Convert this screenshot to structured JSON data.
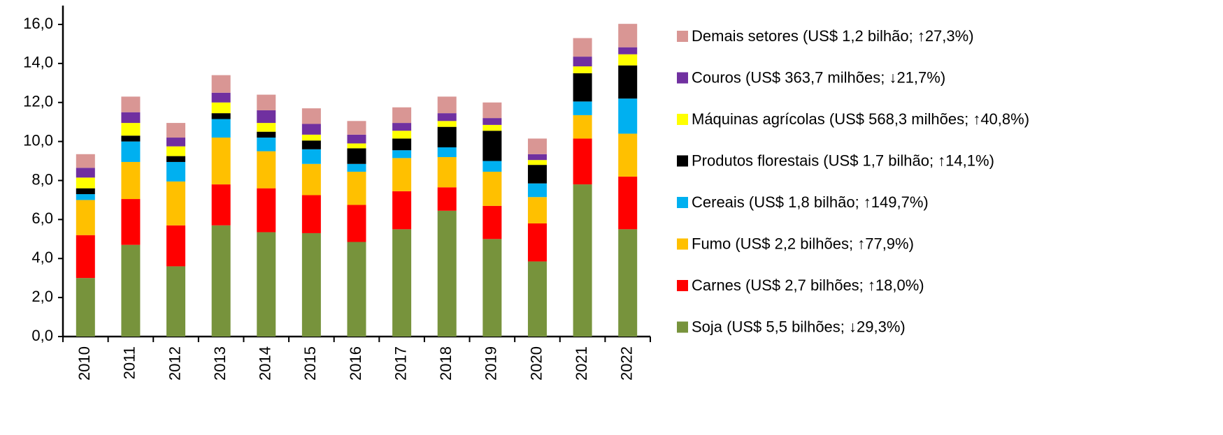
{
  "chart_data": {
    "type": "stacked_bar",
    "categories": [
      "2010",
      "2011",
      "2012",
      "2013",
      "2014",
      "2015",
      "2016",
      "2017",
      "2018",
      "2019",
      "2020",
      "2021",
      "2022"
    ],
    "series": [
      {
        "name": "Soja (US$ 5,5 bilhões; ↓29,3%)",
        "color": "#77933c",
        "values": [
          3.0,
          4.7,
          3.6,
          5.7,
          5.35,
          5.3,
          4.85,
          5.5,
          6.45,
          5.0,
          3.85,
          7.8,
          5.5
        ]
      },
      {
        "name": "Carnes (US$ 2,7 bilhões; ↑18,0%)",
        "color": "#ff0000",
        "values": [
          2.2,
          2.35,
          2.1,
          2.1,
          2.25,
          1.95,
          1.9,
          1.95,
          1.2,
          1.7,
          1.95,
          2.35,
          2.7
        ]
      },
      {
        "name": "Fumo (US$ 2,2 bilhões; ↑77,9%)",
        "color": "#ffc000",
        "values": [
          1.8,
          1.9,
          2.25,
          2.4,
          1.9,
          1.6,
          1.7,
          1.7,
          1.55,
          1.75,
          1.35,
          1.2,
          2.2
        ]
      },
      {
        "name": "Cereais (US$ 1,8 bilhão; ↑149,7%)",
        "color": "#00b0f0",
        "values": [
          0.3,
          1.05,
          1.0,
          0.95,
          0.7,
          0.75,
          0.4,
          0.4,
          0.5,
          0.55,
          0.7,
          0.7,
          1.8
        ]
      },
      {
        "name": "Produtos florestais (US$ 1,7 bilhão; ↑14,1%)",
        "color": "#000000",
        "values": [
          0.3,
          0.3,
          0.3,
          0.3,
          0.3,
          0.45,
          0.8,
          0.6,
          1.05,
          1.55,
          0.95,
          1.45,
          1.7
        ]
      },
      {
        "name": "Máquinas agrícolas (US$ 568,3 milhões; ↑40,8%)",
        "color": "#ffff00",
        "values": [
          0.55,
          0.65,
          0.5,
          0.55,
          0.45,
          0.3,
          0.25,
          0.4,
          0.3,
          0.3,
          0.25,
          0.35,
          0.57
        ]
      },
      {
        "name": "Couros (US$ 363,7 milhões; ↓21,7%)",
        "color": "#7030a0",
        "values": [
          0.5,
          0.55,
          0.45,
          0.5,
          0.65,
          0.55,
          0.45,
          0.4,
          0.4,
          0.35,
          0.3,
          0.5,
          0.36
        ]
      },
      {
        "name": "Demais setores (US$ 1,2 bilhão; ↑27,3%)",
        "color": "#d99694",
        "values": [
          0.7,
          0.8,
          0.75,
          0.9,
          0.8,
          0.8,
          0.7,
          0.8,
          0.85,
          0.8,
          0.8,
          0.95,
          1.2
        ]
      }
    ],
    "ylim": [
      0,
      16
    ],
    "yticks": [
      {
        "value": 0,
        "label": "0,0"
      },
      {
        "value": 2,
        "label": "2,0"
      },
      {
        "value": 4,
        "label": "4,0"
      },
      {
        "value": 6,
        "label": "6,0"
      },
      {
        "value": 8,
        "label": "8,0"
      },
      {
        "value": 10,
        "label": "10,0"
      },
      {
        "value": 12,
        "label": "12,0"
      },
      {
        "value": 14,
        "label": "14,0"
      },
      {
        "value": 16,
        "label": "16,0"
      }
    ],
    "grid": false
  }
}
